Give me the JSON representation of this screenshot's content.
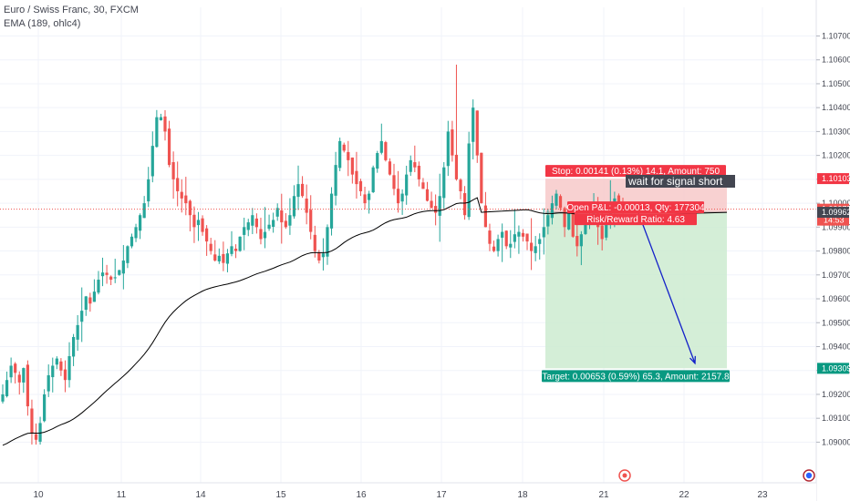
{
  "legend": {
    "symbol": "Euro / Swiss Franc, 30, FXCM",
    "indicator": "EMA (189, ohlc4)"
  },
  "colors": {
    "up": "#26a69a",
    "down": "#ef5350",
    "ema": "#000000",
    "stop_zone": "#f7c9c9",
    "target_zone": "#cdebd0",
    "stop_label": "#f23645",
    "target_label": "#089981",
    "note_bg": "#434651",
    "arrow": "#1321c9",
    "grid": "#f0f3fa",
    "current_price": "#ef5350",
    "ema_price": "#434651"
  },
  "chart_data": {
    "type": "candlestick",
    "ylim": [
      1.0883,
      1.1082
    ],
    "y_ticks": [
      "1.09000",
      "1.09100",
      "1.09200",
      "1.09300",
      "1.09400",
      "1.09500",
      "1.09600",
      "1.09700",
      "1.09800",
      "1.09900",
      "1.10000",
      "1.10100",
      "1.10200",
      "1.10300",
      "1.10400",
      "1.10500",
      "1.10600",
      "1.10700"
    ],
    "x_ticks": [
      "10",
      "11",
      "14",
      "15",
      "16",
      "17",
      "18",
      "21",
      "22",
      "23"
    ],
    "price_tags": {
      "stop_price": "1.10103",
      "current_price": "1.09975",
      "countdown": "14:53",
      "ema_price": "1.09962",
      "target_price": "1.09309"
    },
    "position": {
      "entry": 1.09962,
      "stop": 1.10103,
      "target": 1.09309,
      "stop_label": "Stop: 0.00141 (0.13%) 14.1, Amount: 750",
      "entry_label": "Open P&L: -0.00013, Qty: 177304",
      "ratio_label": "Risk/Reward Ratio: 4.63",
      "target_label": "Target: 0.00653 (0.59%) 65.3, Amount: 2157.8"
    },
    "note": "wait for signal short",
    "projection": {
      "from": 1.0996,
      "to": 1.0933
    },
    "price_path": [
      1.092,
      1.0926,
      1.0932,
      1.0929,
      1.0925,
      1.0931,
      1.0915,
      1.0904,
      1.0901,
      1.0908,
      1.092,
      1.0928,
      1.0932,
      1.0935,
      1.093,
      1.0926,
      1.0936,
      1.0944,
      1.0949,
      1.0955,
      1.0961,
      1.0958,
      1.0963,
      1.0968,
      1.0971,
      1.097,
      1.0968,
      1.0969,
      1.0972,
      1.0976,
      1.0982,
      1.0986,
      1.099,
      1.0995,
      1.1,
      1.101,
      1.1024,
      1.1036,
      1.1036,
      1.103,
      1.1016,
      1.101,
      1.1005,
      1.1002,
      1.1,
      1.0995,
      1.099,
      1.0993,
      1.0988,
      1.0984,
      1.098,
      1.0976,
      1.0978,
      1.0975,
      1.0979,
      1.0982,
      1.098,
      1.0986,
      1.099,
      1.0992,
      1.0995,
      1.099,
      1.0985,
      1.0988,
      1.0991,
      1.0993,
      1.0998,
      1.0992,
      1.099,
      1.0995,
      1.1003,
      1.1008,
      1.1003,
      1.0996,
      1.0988,
      1.098,
      1.0976,
      1.0979,
      1.099,
      1.1004,
      1.1016,
      1.1026,
      1.1022,
      1.1018,
      1.1012,
      1.1008,
      1.1005,
      1.1,
      1.1004,
      1.1015,
      1.1021,
      1.1026,
      1.1018,
      1.1012,
      1.1006,
      1.1,
      1.1004,
      1.1012,
      1.1018,
      1.1015,
      1.101,
      1.1006,
      1.1001,
      1.0998,
      1.0996,
      1.1003,
      1.1015,
      1.103,
      1.102,
      1.101,
      1.1005,
      1.0995,
      1.1025,
      1.104,
      1.102,
      1.1,
      1.099,
      1.0983,
      1.098,
      1.0985,
      1.0988,
      1.0982,
      1.0983,
      1.0987,
      1.0988,
      1.0986,
      1.0984,
      1.098,
      1.0982,
      1.0985,
      1.099,
      1.0995,
      1.1,
      1.1004,
      1.0998,
      1.099,
      1.0996,
      1.0986,
      1.0982,
      1.0987,
      1.0992,
      1.0994,
      1.0996,
      1.099,
      1.0985,
      1.0992,
      1.0998,
      1.1002,
      1.1,
      1.0996
    ]
  }
}
